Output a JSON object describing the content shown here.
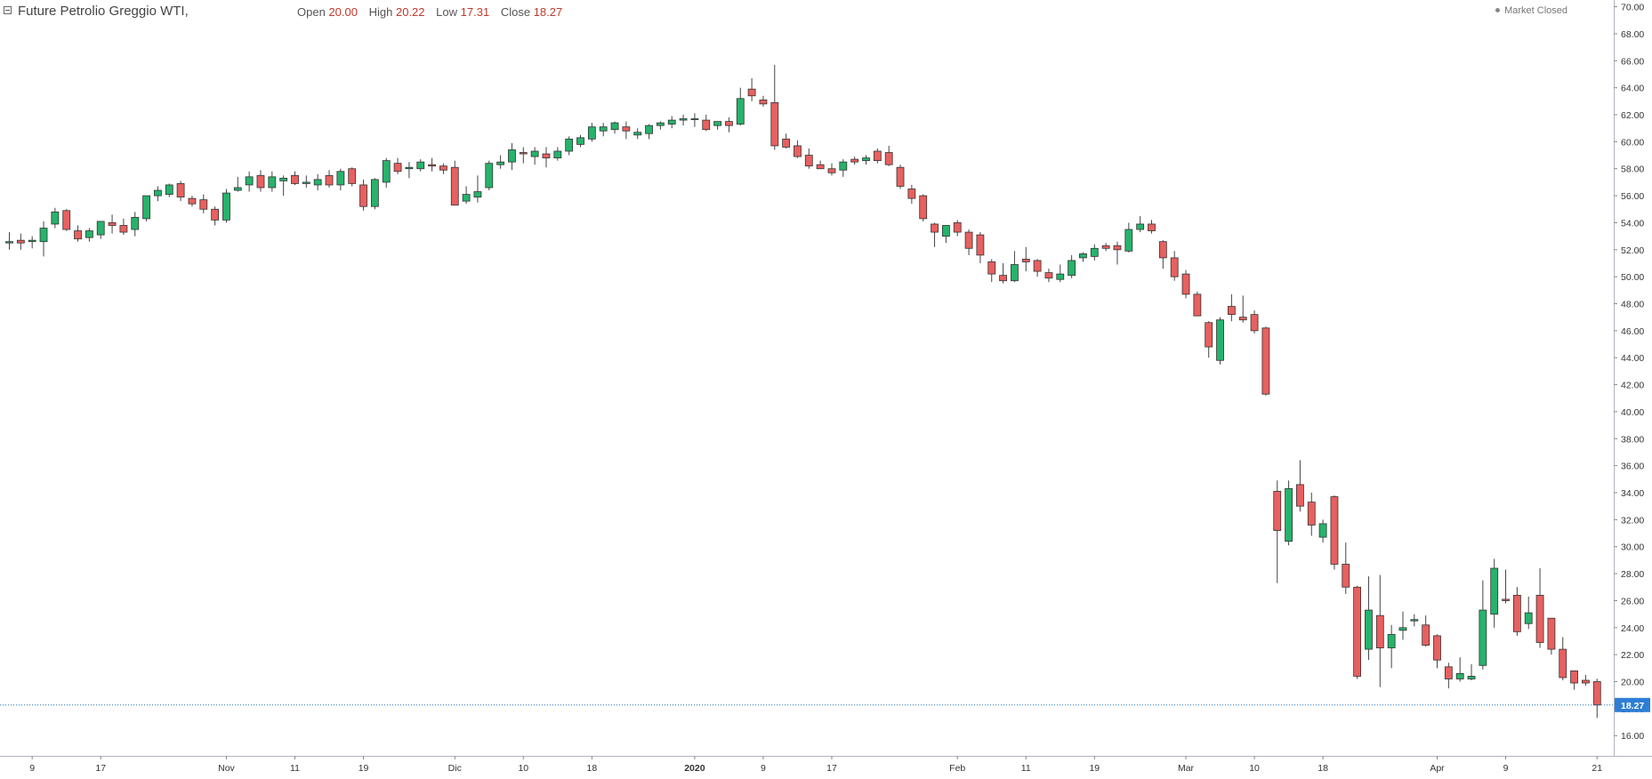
{
  "header": {
    "title": "Future Petrolio Greggio WTI,",
    "ohlc": [
      {
        "label": "Open",
        "value": "20.00"
      },
      {
        "label": "High",
        "value": "20.22"
      },
      {
        "label": "Low",
        "value": "17.31"
      },
      {
        "label": "Close",
        "value": "18.27"
      }
    ],
    "market_status": "Market Closed"
  },
  "colors": {
    "up": "#26b36b",
    "down": "#e8605f",
    "wick": "#444444",
    "last_line": "#1e73be",
    "last_label_bg": "#2e7ed6"
  },
  "chart_data": {
    "type": "candlestick",
    "ylim": [
      14.5,
      70.5
    ],
    "yticks": [
      "70.00",
      "68.00",
      "66.00",
      "64.00",
      "62.00",
      "60.00",
      "58.00",
      "56.00",
      "54.00",
      "52.00",
      "50.00",
      "48.00",
      "46.00",
      "44.00",
      "42.00",
      "40.00",
      "38.00",
      "36.00",
      "34.00",
      "32.00",
      "30.00",
      "28.00",
      "26.00",
      "24.00",
      "22.00",
      "20.00",
      "18.00",
      "16.00"
    ],
    "last_price": 18.27,
    "last_price_label": "18.27",
    "xticks": [
      {
        "label": "9",
        "index": 2,
        "bold": false
      },
      {
        "label": "17",
        "index": 8,
        "bold": false
      },
      {
        "label": "Nov",
        "index": 19,
        "bold": false
      },
      {
        "label": "11",
        "index": 25,
        "bold": false
      },
      {
        "label": "19",
        "index": 31,
        "bold": false
      },
      {
        "label": "Dic",
        "index": 39,
        "bold": false
      },
      {
        "label": "10",
        "index": 45,
        "bold": false
      },
      {
        "label": "18",
        "index": 51,
        "bold": false
      },
      {
        "label": "2020",
        "index": 60,
        "bold": true
      },
      {
        "label": "9",
        "index": 66,
        "bold": false
      },
      {
        "label": "17",
        "index": 72,
        "bold": false
      },
      {
        "label": "Feb",
        "index": 83,
        "bold": false
      },
      {
        "label": "11",
        "index": 89,
        "bold": false
      },
      {
        "label": "19",
        "index": 95,
        "bold": false
      },
      {
        "label": "Mar",
        "index": 103,
        "bold": false
      },
      {
        "label": "10",
        "index": 109,
        "bold": false
      },
      {
        "label": "18",
        "index": 115,
        "bold": false
      },
      {
        "label": "Apr",
        "index": 125,
        "bold": false
      },
      {
        "label": "9",
        "index": 131,
        "bold": false
      },
      {
        "label": "21",
        "index": 139,
        "bold": false
      }
    ],
    "candles": [
      {
        "o": 52.5,
        "h": 53.3,
        "l": 52.0,
        "c": 52.6
      },
      {
        "o": 52.7,
        "h": 53.2,
        "l": 52.0,
        "c": 52.5
      },
      {
        "o": 52.6,
        "h": 53.0,
        "l": 52.1,
        "c": 52.7
      },
      {
        "o": 52.6,
        "h": 54.1,
        "l": 51.5,
        "c": 53.6
      },
      {
        "o": 53.9,
        "h": 55.1,
        "l": 53.6,
        "c": 54.8
      },
      {
        "o": 54.9,
        "h": 55.0,
        "l": 53.4,
        "c": 53.5
      },
      {
        "o": 53.4,
        "h": 53.8,
        "l": 52.6,
        "c": 52.8
      },
      {
        "o": 52.9,
        "h": 53.6,
        "l": 52.6,
        "c": 53.4
      },
      {
        "o": 53.1,
        "h": 54.1,
        "l": 52.8,
        "c": 54.1
      },
      {
        "o": 54.0,
        "h": 54.6,
        "l": 53.2,
        "c": 53.8
      },
      {
        "o": 53.8,
        "h": 54.3,
        "l": 53.1,
        "c": 53.3
      },
      {
        "o": 53.5,
        "h": 54.8,
        "l": 53.0,
        "c": 54.4
      },
      {
        "o": 54.3,
        "h": 56.0,
        "l": 54.1,
        "c": 56.0
      },
      {
        "o": 56.0,
        "h": 56.7,
        "l": 55.6,
        "c": 56.4
      },
      {
        "o": 56.1,
        "h": 56.9,
        "l": 55.9,
        "c": 56.8
      },
      {
        "o": 56.9,
        "h": 57.1,
        "l": 55.6,
        "c": 55.9
      },
      {
        "o": 55.8,
        "h": 56.0,
        "l": 55.2,
        "c": 55.4
      },
      {
        "o": 55.7,
        "h": 56.1,
        "l": 54.7,
        "c": 55.0
      },
      {
        "o": 55.0,
        "h": 55.2,
        "l": 53.8,
        "c": 54.2
      },
      {
        "o": 54.2,
        "h": 56.5,
        "l": 54.0,
        "c": 56.2
      },
      {
        "o": 56.4,
        "h": 57.4,
        "l": 56.3,
        "c": 56.6
      },
      {
        "o": 56.8,
        "h": 57.8,
        "l": 56.3,
        "c": 57.4
      },
      {
        "o": 57.5,
        "h": 57.9,
        "l": 56.3,
        "c": 56.6
      },
      {
        "o": 56.6,
        "h": 57.8,
        "l": 56.3,
        "c": 57.4
      },
      {
        "o": 57.1,
        "h": 57.5,
        "l": 56.0,
        "c": 57.3
      },
      {
        "o": 57.5,
        "h": 57.8,
        "l": 56.8,
        "c": 56.9
      },
      {
        "o": 56.9,
        "h": 57.5,
        "l": 56.6,
        "c": 57.0
      },
      {
        "o": 56.8,
        "h": 57.6,
        "l": 56.4,
        "c": 57.2
      },
      {
        "o": 57.5,
        "h": 57.9,
        "l": 56.6,
        "c": 56.8
      },
      {
        "o": 56.8,
        "h": 58.0,
        "l": 56.4,
        "c": 57.8
      },
      {
        "o": 58.0,
        "h": 58.1,
        "l": 56.7,
        "c": 56.9
      },
      {
        "o": 56.8,
        "h": 57.2,
        "l": 54.9,
        "c": 55.2
      },
      {
        "o": 55.2,
        "h": 57.3,
        "l": 55.0,
        "c": 57.2
      },
      {
        "o": 57.0,
        "h": 58.8,
        "l": 56.6,
        "c": 58.6
      },
      {
        "o": 58.4,
        "h": 58.8,
        "l": 57.6,
        "c": 57.8
      },
      {
        "o": 58.0,
        "h": 58.5,
        "l": 57.3,
        "c": 58.1
      },
      {
        "o": 58.0,
        "h": 58.7,
        "l": 57.8,
        "c": 58.5
      },
      {
        "o": 58.3,
        "h": 58.8,
        "l": 57.8,
        "c": 58.2
      },
      {
        "o": 58.2,
        "h": 58.4,
        "l": 57.6,
        "c": 57.9
      },
      {
        "o": 58.1,
        "h": 58.6,
        "l": 55.4,
        "c": 55.3
      },
      {
        "o": 55.6,
        "h": 56.7,
        "l": 55.4,
        "c": 56.1
      },
      {
        "o": 55.9,
        "h": 57.5,
        "l": 55.5,
        "c": 56.3
      },
      {
        "o": 56.6,
        "h": 58.6,
        "l": 56.4,
        "c": 58.4
      },
      {
        "o": 58.3,
        "h": 59.0,
        "l": 58.0,
        "c": 58.5
      },
      {
        "o": 58.5,
        "h": 59.9,
        "l": 57.9,
        "c": 59.4
      },
      {
        "o": 59.2,
        "h": 59.6,
        "l": 58.4,
        "c": 59.1
      },
      {
        "o": 58.9,
        "h": 59.6,
        "l": 58.3,
        "c": 59.3
      },
      {
        "o": 59.1,
        "h": 59.6,
        "l": 58.1,
        "c": 58.8
      },
      {
        "o": 58.8,
        "h": 59.6,
        "l": 58.6,
        "c": 59.3
      },
      {
        "o": 59.3,
        "h": 60.4,
        "l": 59.0,
        "c": 60.2
      },
      {
        "o": 59.8,
        "h": 60.5,
        "l": 59.6,
        "c": 60.3
      },
      {
        "o": 60.2,
        "h": 61.4,
        "l": 60.0,
        "c": 61.1
      },
      {
        "o": 60.8,
        "h": 61.4,
        "l": 60.4,
        "c": 61.1
      },
      {
        "o": 60.9,
        "h": 61.5,
        "l": 60.6,
        "c": 61.4
      },
      {
        "o": 61.1,
        "h": 61.5,
        "l": 60.2,
        "c": 60.8
      },
      {
        "o": 60.5,
        "h": 61.0,
        "l": 60.2,
        "c": 60.7
      },
      {
        "o": 60.6,
        "h": 61.3,
        "l": 60.2,
        "c": 61.2
      },
      {
        "o": 61.2,
        "h": 61.5,
        "l": 60.9,
        "c": 61.4
      },
      {
        "o": 61.3,
        "h": 61.9,
        "l": 61.0,
        "c": 61.6
      },
      {
        "o": 61.6,
        "h": 62.0,
        "l": 61.2,
        "c": 61.7
      },
      {
        "o": 61.7,
        "h": 62.1,
        "l": 61.1,
        "c": 61.7
      },
      {
        "o": 61.6,
        "h": 62.0,
        "l": 60.8,
        "c": 60.9
      },
      {
        "o": 61.2,
        "h": 61.5,
        "l": 60.9,
        "c": 61.5
      },
      {
        "o": 61.5,
        "h": 61.8,
        "l": 60.7,
        "c": 61.2
      },
      {
        "o": 61.3,
        "h": 64.0,
        "l": 61.2,
        "c": 63.2
      },
      {
        "o": 63.9,
        "h": 64.7,
        "l": 63.0,
        "c": 63.4
      },
      {
        "o": 63.1,
        "h": 63.4,
        "l": 62.6,
        "c": 62.8
      },
      {
        "o": 62.9,
        "h": 65.7,
        "l": 59.4,
        "c": 59.7
      },
      {
        "o": 60.2,
        "h": 60.6,
        "l": 59.5,
        "c": 59.6
      },
      {
        "o": 59.7,
        "h": 60.1,
        "l": 58.8,
        "c": 58.9
      },
      {
        "o": 59.0,
        "h": 59.5,
        "l": 58.0,
        "c": 58.2
      },
      {
        "o": 58.3,
        "h": 58.6,
        "l": 58.0,
        "c": 58.0
      },
      {
        "o": 58.0,
        "h": 58.4,
        "l": 57.5,
        "c": 57.7
      },
      {
        "o": 57.9,
        "h": 58.7,
        "l": 57.4,
        "c": 58.5
      },
      {
        "o": 58.7,
        "h": 58.9,
        "l": 58.3,
        "c": 58.5
      },
      {
        "o": 58.6,
        "h": 59.0,
        "l": 58.3,
        "c": 58.8
      },
      {
        "o": 59.3,
        "h": 59.5,
        "l": 58.4,
        "c": 58.6
      },
      {
        "o": 59.2,
        "h": 59.7,
        "l": 58.2,
        "c": 58.3
      },
      {
        "o": 58.1,
        "h": 58.3,
        "l": 56.5,
        "c": 56.7
      },
      {
        "o": 56.5,
        "h": 56.8,
        "l": 55.4,
        "c": 55.8
      },
      {
        "o": 56.0,
        "h": 56.1,
        "l": 54.1,
        "c": 54.3
      },
      {
        "o": 53.9,
        "h": 54.0,
        "l": 52.2,
        "c": 53.3
      },
      {
        "o": 53.0,
        "h": 53.7,
        "l": 52.5,
        "c": 53.8
      },
      {
        "o": 54.0,
        "h": 54.2,
        "l": 53.0,
        "c": 53.3
      },
      {
        "o": 53.3,
        "h": 53.5,
        "l": 51.6,
        "c": 52.1
      },
      {
        "o": 53.1,
        "h": 53.3,
        "l": 51.0,
        "c": 51.6
      },
      {
        "o": 51.1,
        "h": 51.3,
        "l": 49.6,
        "c": 50.2
      },
      {
        "o": 50.1,
        "h": 51.0,
        "l": 49.5,
        "c": 49.7
      },
      {
        "o": 49.7,
        "h": 51.9,
        "l": 49.6,
        "c": 50.9
      },
      {
        "o": 51.3,
        "h": 52.2,
        "l": 50.4,
        "c": 51.1
      },
      {
        "o": 51.2,
        "h": 51.3,
        "l": 50.0,
        "c": 50.4
      },
      {
        "o": 50.3,
        "h": 50.6,
        "l": 49.6,
        "c": 49.9
      },
      {
        "o": 49.8,
        "h": 50.9,
        "l": 49.6,
        "c": 50.2
      },
      {
        "o": 50.1,
        "h": 51.6,
        "l": 49.9,
        "c": 51.2
      },
      {
        "o": 51.4,
        "h": 51.8,
        "l": 51.1,
        "c": 51.7
      },
      {
        "o": 51.5,
        "h": 52.4,
        "l": 51.2,
        "c": 52.1
      },
      {
        "o": 52.3,
        "h": 52.5,
        "l": 51.9,
        "c": 52.1
      },
      {
        "o": 52.3,
        "h": 52.6,
        "l": 50.9,
        "c": 52.0
      },
      {
        "o": 51.9,
        "h": 54.0,
        "l": 51.8,
        "c": 53.5
      },
      {
        "o": 53.5,
        "h": 54.5,
        "l": 53.3,
        "c": 53.9
      },
      {
        "o": 53.9,
        "h": 54.2,
        "l": 53.2,
        "c": 53.4
      },
      {
        "o": 52.6,
        "h": 52.7,
        "l": 50.6,
        "c": 51.4
      },
      {
        "o": 51.4,
        "h": 51.9,
        "l": 49.7,
        "c": 50.0
      },
      {
        "o": 50.2,
        "h": 50.5,
        "l": 48.4,
        "c": 48.7
      },
      {
        "o": 48.7,
        "h": 48.9,
        "l": 47.1,
        "c": 47.1
      },
      {
        "o": 46.6,
        "h": 46.7,
        "l": 44.0,
        "c": 44.8
      },
      {
        "o": 43.8,
        "h": 47.0,
        "l": 43.5,
        "c": 46.8
      },
      {
        "o": 47.8,
        "h": 48.7,
        "l": 46.7,
        "c": 47.2
      },
      {
        "o": 47.0,
        "h": 48.6,
        "l": 46.6,
        "c": 46.8
      },
      {
        "o": 47.2,
        "h": 47.5,
        "l": 45.8,
        "c": 46.0
      },
      {
        "o": 46.2,
        "h": 46.3,
        "l": 41.2,
        "c": 41.3
      },
      {
        "o": 34.1,
        "h": 34.9,
        "l": 27.3,
        "c": 31.2
      },
      {
        "o": 30.4,
        "h": 34.9,
        "l": 30.1,
        "c": 34.3
      },
      {
        "o": 34.6,
        "h": 36.4,
        "l": 32.6,
        "c": 33.0
      },
      {
        "o": 33.3,
        "h": 34.0,
        "l": 30.8,
        "c": 31.6
      },
      {
        "o": 30.7,
        "h": 32.0,
        "l": 30.3,
        "c": 31.7
      },
      {
        "o": 33.7,
        "h": 33.8,
        "l": 28.3,
        "c": 28.7
      },
      {
        "o": 28.7,
        "h": 30.3,
        "l": 26.5,
        "c": 27.0
      },
      {
        "o": 27.0,
        "h": 27.1,
        "l": 20.2,
        "c": 20.4
      },
      {
        "o": 22.4,
        "h": 27.8,
        "l": 21.6,
        "c": 25.3
      },
      {
        "o": 24.9,
        "h": 27.9,
        "l": 19.6,
        "c": 22.5
      },
      {
        "o": 22.5,
        "h": 24.2,
        "l": 21.0,
        "c": 23.5
      },
      {
        "o": 23.8,
        "h": 25.2,
        "l": 23.1,
        "c": 24.0
      },
      {
        "o": 24.5,
        "h": 25.0,
        "l": 24.1,
        "c": 24.6
      },
      {
        "o": 24.2,
        "h": 24.9,
        "l": 22.6,
        "c": 22.7
      },
      {
        "o": 23.4,
        "h": 23.5,
        "l": 21.0,
        "c": 21.6
      },
      {
        "o": 21.1,
        "h": 21.4,
        "l": 19.5,
        "c": 20.2
      },
      {
        "o": 20.2,
        "h": 21.8,
        "l": 20.0,
        "c": 20.6
      },
      {
        "o": 20.2,
        "h": 21.3,
        "l": 20.1,
        "c": 20.4
      },
      {
        "o": 21.2,
        "h": 27.5,
        "l": 20.9,
        "c": 25.3
      },
      {
        "o": 25.0,
        "h": 29.1,
        "l": 24.0,
        "c": 28.4
      },
      {
        "o": 26.1,
        "h": 28.3,
        "l": 25.8,
        "c": 26.0
      },
      {
        "o": 26.4,
        "h": 27.0,
        "l": 23.4,
        "c": 23.7
      },
      {
        "o": 24.3,
        "h": 26.3,
        "l": 23.9,
        "c": 25.1
      },
      {
        "o": 26.4,
        "h": 28.4,
        "l": 22.5,
        "c": 22.9
      },
      {
        "o": 24.7,
        "h": 24.7,
        "l": 22.0,
        "c": 22.4
      },
      {
        "o": 22.4,
        "h": 23.3,
        "l": 20.1,
        "c": 20.3
      },
      {
        "o": 20.8,
        "h": 20.8,
        "l": 19.4,
        "c": 19.9
      },
      {
        "o": 20.1,
        "h": 20.5,
        "l": 19.7,
        "c": 19.9
      },
      {
        "o": 20.0,
        "h": 20.22,
        "l": 17.31,
        "c": 18.27
      }
    ]
  }
}
